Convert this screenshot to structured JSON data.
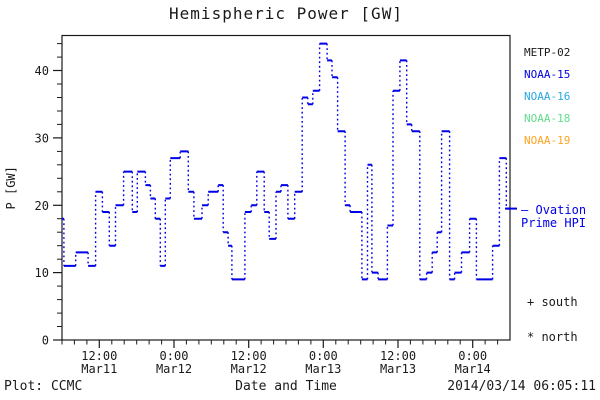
{
  "title": "Hemispheric Power [GW]",
  "y_axis_label": "P [GW]",
  "x_axis_label": "Date and Time",
  "footer": {
    "left": "Plot: CCMC",
    "right": "2014/03/14 06:05:11"
  },
  "legend": {
    "satellites": [
      {
        "label": "METP-02",
        "color": "#1a1a1a"
      },
      {
        "label": "NOAA-15",
        "color": "#0000e6"
      },
      {
        "label": "NOAA-16",
        "color": "#25a9e5"
      },
      {
        "label": "NOAA-18",
        "color": "#61dc8c"
      },
      {
        "label": "NOAA-19",
        "color": "#ffa321"
      }
    ],
    "hpi": {
      "dash": "—",
      "line1": "Ovation",
      "line2": "Prime HPI",
      "color": "#0000e6"
    },
    "markers": [
      {
        "symbol": "+",
        "label": "south"
      },
      {
        "symbol": "*",
        "label": "north"
      }
    ]
  },
  "chart_data": {
    "type": "line",
    "subtype": "step",
    "title": "Hemispheric Power [GW]",
    "xlabel": "Date and Time",
    "ylabel": "P [GW]",
    "series_name": "Ovation Prime HPI",
    "color": "#0000e6",
    "axis_color": "#1a1a1a",
    "grid": false,
    "t_units": "hours since 2014-03-11 00:00",
    "t_range": [
      6.0,
      78.0
    ],
    "y_max": 45.2,
    "y_major_ticks": [
      0,
      10,
      20,
      30,
      40
    ],
    "y_minor_step": 2,
    "x_minor_step_hours": 2,
    "x_major_ticks": [
      {
        "t": 12,
        "time": "12:00",
        "date": "Mar11"
      },
      {
        "t": 24,
        "time": "0:00",
        "date": "Mar12"
      },
      {
        "t": 36,
        "time": "12:00",
        "date": "Mar12"
      },
      {
        "t": 48,
        "time": "0:00",
        "date": "Mar13"
      },
      {
        "t": 60,
        "time": "12:00",
        "date": "Mar13"
      },
      {
        "t": 72,
        "time": "0:00",
        "date": "Mar14"
      }
    ],
    "steps": [
      [
        6.0,
        18
      ],
      [
        6.3,
        11
      ],
      [
        8.2,
        13
      ],
      [
        10.2,
        11
      ],
      [
        11.4,
        22
      ],
      [
        12.5,
        19
      ],
      [
        13.6,
        14
      ],
      [
        14.6,
        20
      ],
      [
        15.9,
        25
      ],
      [
        17.3,
        19
      ],
      [
        18.1,
        25
      ],
      [
        19.4,
        23
      ],
      [
        20.2,
        21
      ],
      [
        21.0,
        18
      ],
      [
        21.8,
        11
      ],
      [
        22.6,
        21
      ],
      [
        23.4,
        27
      ],
      [
        25.0,
        28
      ],
      [
        26.3,
        22
      ],
      [
        27.2,
        18
      ],
      [
        28.5,
        20
      ],
      [
        29.5,
        22
      ],
      [
        31.1,
        23
      ],
      [
        31.9,
        16
      ],
      [
        32.7,
        14
      ],
      [
        33.3,
        9
      ],
      [
        35.4,
        19
      ],
      [
        36.4,
        20
      ],
      [
        37.3,
        25
      ],
      [
        38.5,
        19
      ],
      [
        39.3,
        15
      ],
      [
        40.4,
        22
      ],
      [
        41.2,
        23
      ],
      [
        42.3,
        18
      ],
      [
        43.4,
        22
      ],
      [
        44.6,
        36
      ],
      [
        45.5,
        35
      ],
      [
        46.3,
        37
      ],
      [
        47.4,
        44
      ],
      [
        48.6,
        41.5
      ],
      [
        49.4,
        39
      ],
      [
        50.3,
        31
      ],
      [
        51.5,
        20
      ],
      [
        52.3,
        19
      ],
      [
        54.2,
        9
      ],
      [
        55.1,
        26
      ],
      [
        55.8,
        10
      ],
      [
        56.8,
        9
      ],
      [
        58.3,
        17
      ],
      [
        59.2,
        37
      ],
      [
        60.3,
        41.5
      ],
      [
        61.4,
        32
      ],
      [
        62.2,
        31
      ],
      [
        63.5,
        9
      ],
      [
        64.6,
        10
      ],
      [
        65.5,
        13
      ],
      [
        66.3,
        16
      ],
      [
        67.0,
        31
      ],
      [
        68.3,
        9
      ],
      [
        69.1,
        10
      ],
      [
        70.2,
        13
      ],
      [
        71.5,
        18
      ],
      [
        72.6,
        9
      ],
      [
        75.2,
        14
      ],
      [
        76.3,
        27
      ],
      [
        77.4,
        19.5
      ]
    ]
  }
}
